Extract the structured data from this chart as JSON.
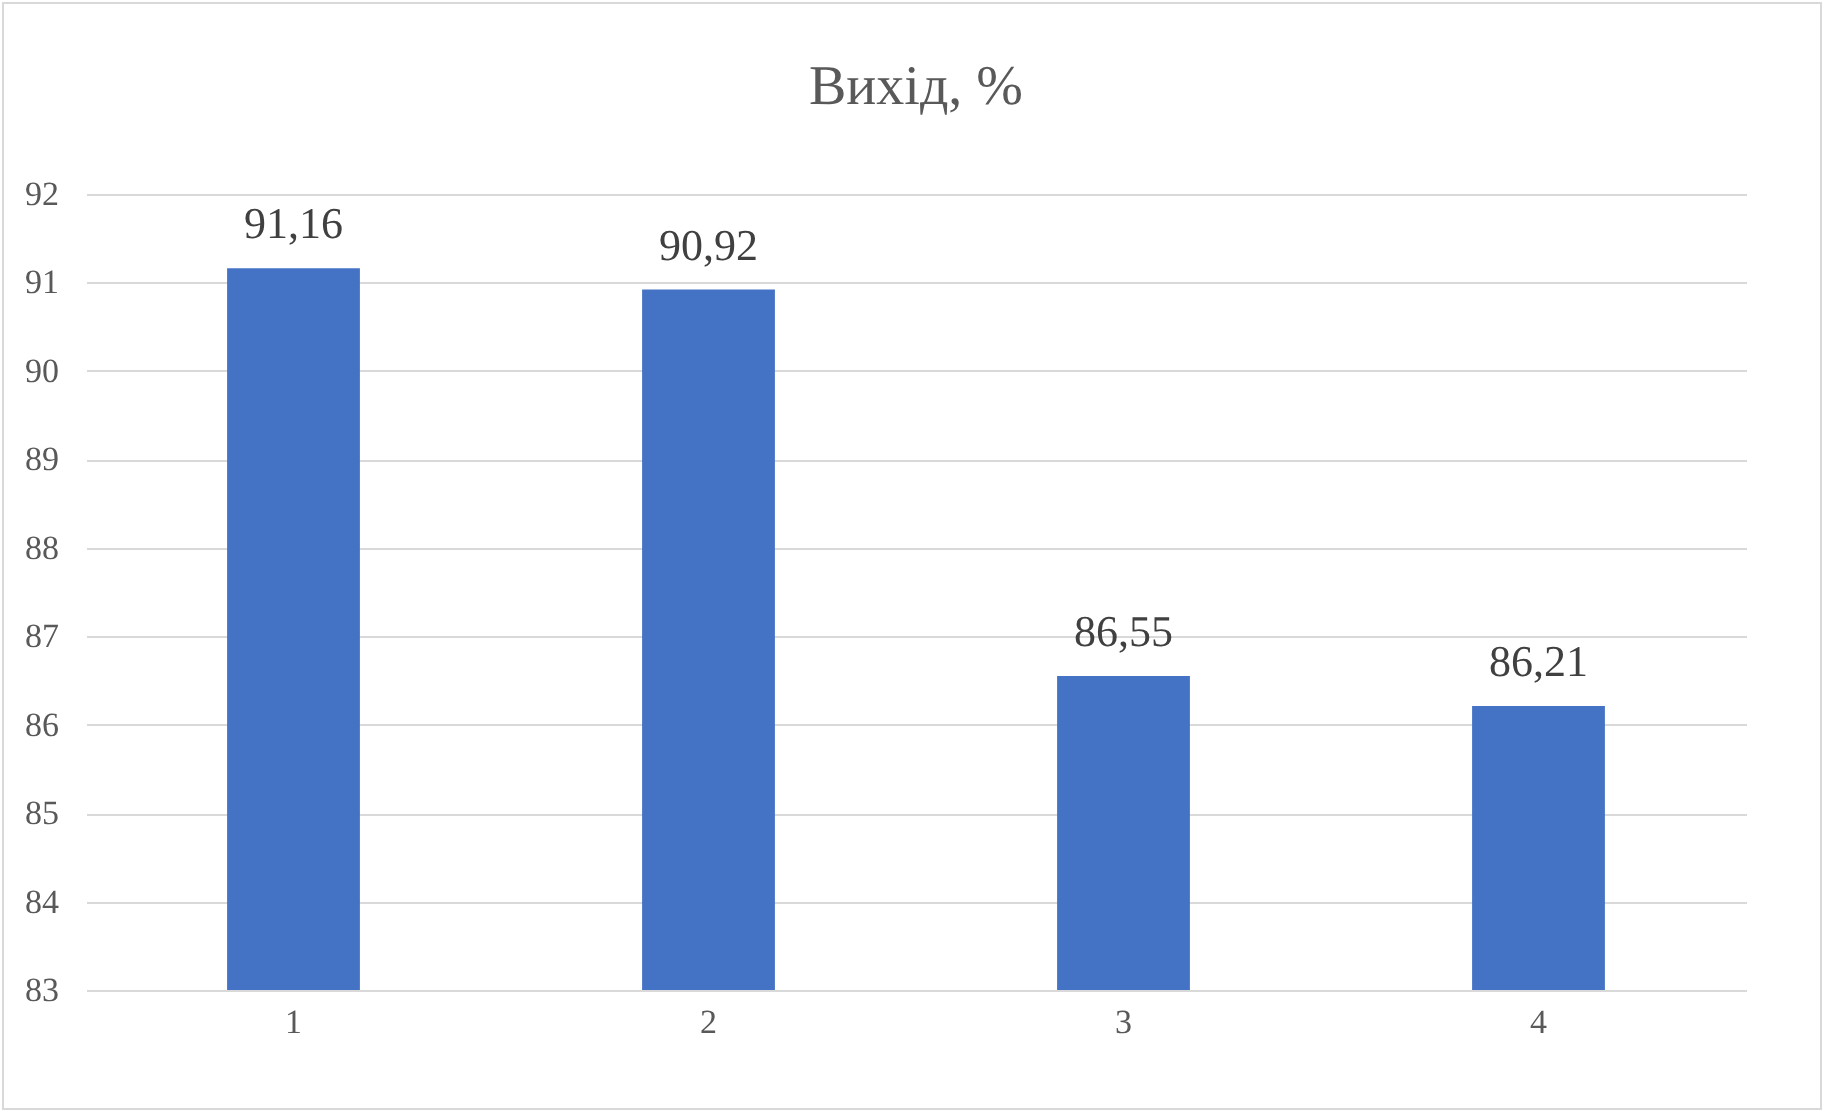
{
  "chart_data": {
    "type": "bar",
    "title": "Вихід, %",
    "categories": [
      "1",
      "2",
      "3",
      "4"
    ],
    "values": [
      91.16,
      90.92,
      86.55,
      86.21
    ],
    "value_labels": [
      "91,16",
      "90,92",
      "86,55",
      "86,21"
    ],
    "color": "#4472c4",
    "ylim": [
      83,
      92
    ],
    "yticks": [
      83,
      84,
      85,
      86,
      87,
      88,
      89,
      90,
      91,
      92
    ],
    "grid": "y"
  }
}
